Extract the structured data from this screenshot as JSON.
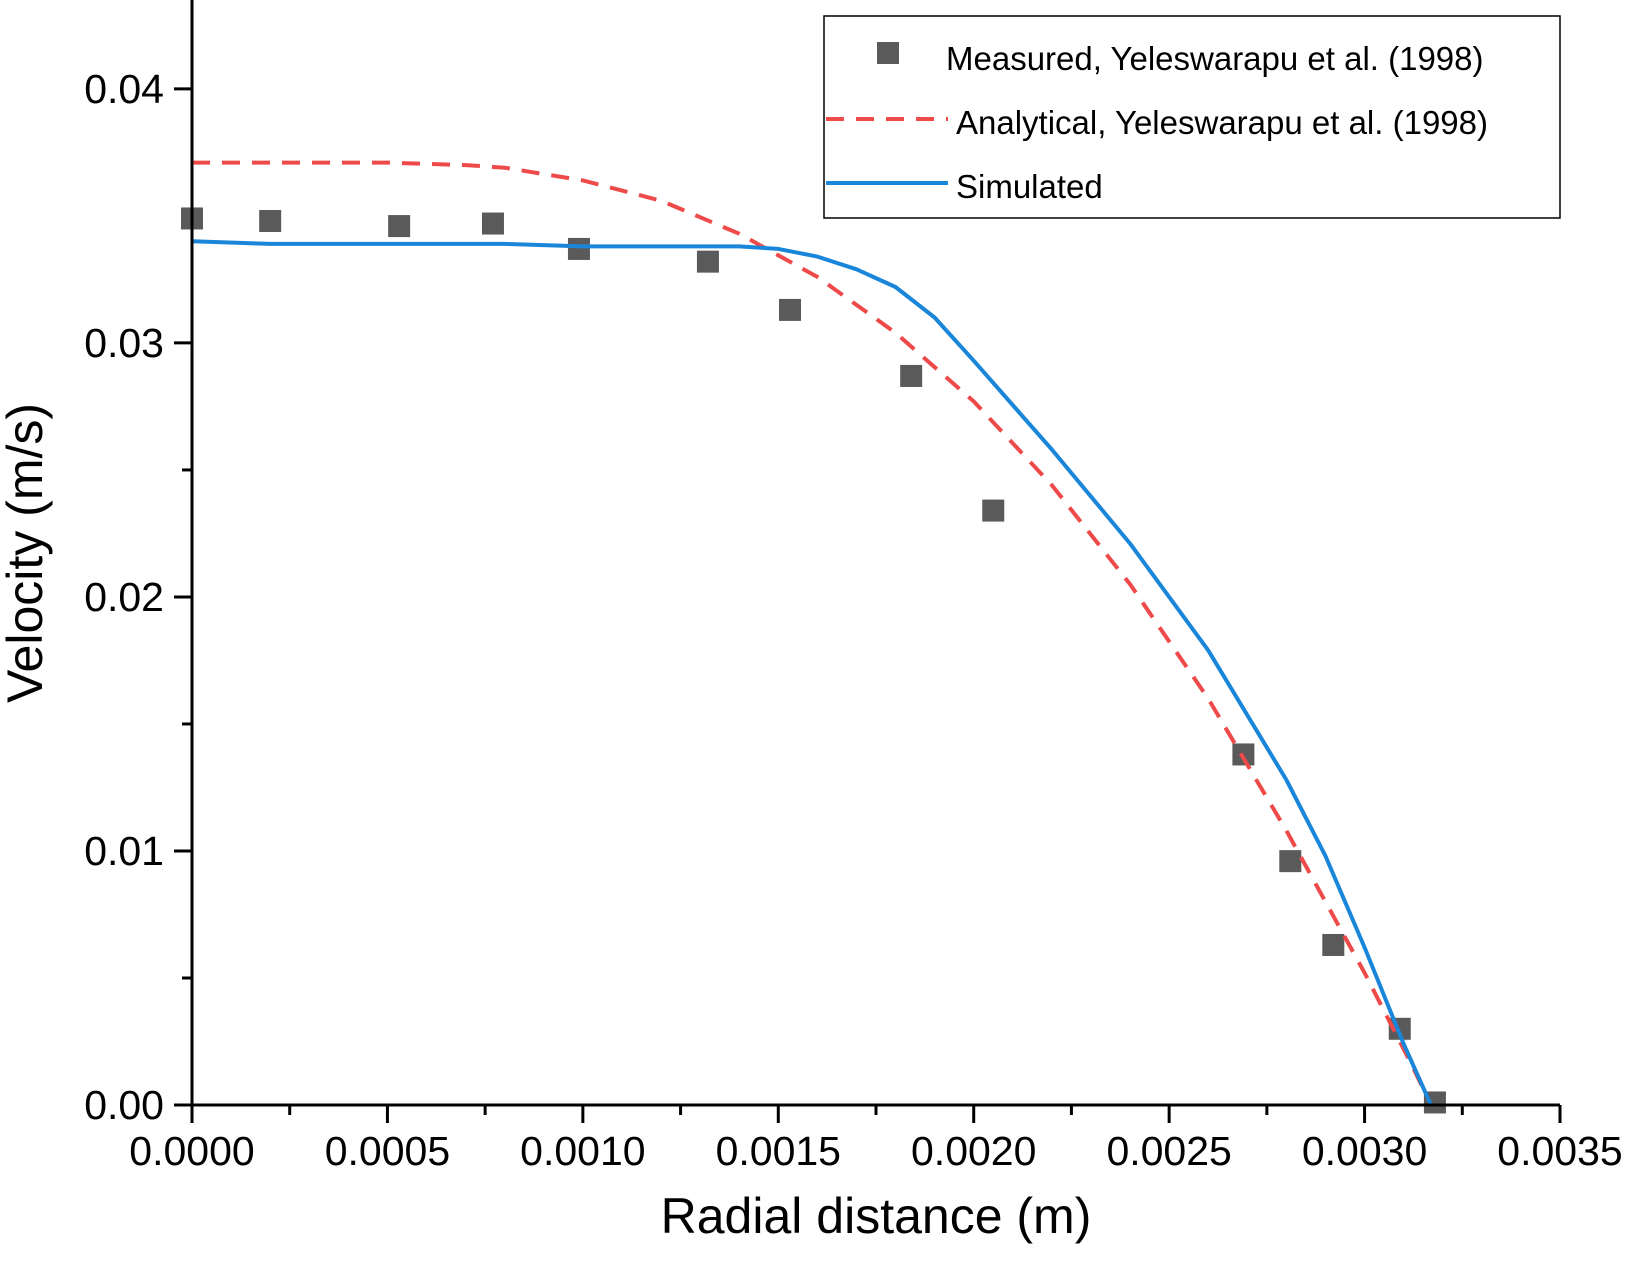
{
  "chart_data": {
    "type": "line",
    "xlabel": "Radial distance (m)",
    "ylabel": "Velocity (m/s)",
    "xlim": [
      0,
      0.0035
    ],
    "ylim": [
      0,
      0.0435
    ],
    "x_ticks": [
      0,
      0.0005,
      0.001,
      0.0015,
      0.002,
      0.0025,
      0.003,
      0.0035
    ],
    "x_tick_labels": [
      "0.0000",
      "0.0005",
      "0.0010",
      "0.0015",
      "0.0020",
      "0.0025",
      "0.0030",
      "0.0035"
    ],
    "y_ticks": [
      0,
      0.01,
      0.02,
      0.03,
      0.04
    ],
    "y_tick_labels": [
      "0.00",
      "0.01",
      "0.02",
      "0.03",
      "0.04"
    ],
    "legend_position": "top-right",
    "series": [
      {
        "name": "Measured, Yeleswarapu et al. (1998)",
        "style": "scatter-square",
        "color": "#5a5a5a",
        "points": [
          [
            0.0,
            0.0349
          ],
          [
            0.0002,
            0.0348
          ],
          [
            0.00053,
            0.0346
          ],
          [
            0.00077,
            0.0347
          ],
          [
            0.00099,
            0.0337
          ],
          [
            0.00132,
            0.0332
          ],
          [
            0.00153,
            0.0313
          ],
          [
            0.00184,
            0.0287
          ],
          [
            0.00205,
            0.0234
          ],
          [
            0.00269,
            0.0138
          ],
          [
            0.00281,
            0.0096
          ],
          [
            0.00292,
            0.0063
          ],
          [
            0.00309,
            0.003
          ],
          [
            0.00318,
            0.0001
          ]
        ]
      },
      {
        "name": "Analytical, Yeleswarapu et al. (1998)",
        "style": "dashed-line",
        "color": "#ef4a4a",
        "points": [
          [
            0.0,
            0.0371
          ],
          [
            0.0002,
            0.0371
          ],
          [
            0.0004,
            0.0371
          ],
          [
            0.0005,
            0.0371
          ],
          [
            0.0007,
            0.037
          ],
          [
            0.0008,
            0.0369
          ],
          [
            0.001,
            0.0364
          ],
          [
            0.0012,
            0.0356
          ],
          [
            0.0014,
            0.0343
          ],
          [
            0.0016,
            0.0326
          ],
          [
            0.0018,
            0.0304
          ],
          [
            0.002,
            0.0277
          ],
          [
            0.0022,
            0.0244
          ],
          [
            0.0024,
            0.0205
          ],
          [
            0.0026,
            0.016
          ],
          [
            0.0028,
            0.0108
          ],
          [
            0.003,
            0.0052
          ],
          [
            0.00312,
            0.0016
          ],
          [
            0.00317,
            0.0
          ]
        ]
      },
      {
        "name": "Simulated",
        "style": "solid-line",
        "color": "#1a86d9",
        "points": [
          [
            0.0,
            0.034
          ],
          [
            0.0002,
            0.0339
          ],
          [
            0.0005,
            0.0339
          ],
          [
            0.0008,
            0.0339
          ],
          [
            0.001,
            0.0338
          ],
          [
            0.0012,
            0.0338
          ],
          [
            0.0014,
            0.0338
          ],
          [
            0.0015,
            0.0337
          ],
          [
            0.0016,
            0.0334
          ],
          [
            0.0017,
            0.0329
          ],
          [
            0.0018,
            0.0322
          ],
          [
            0.0019,
            0.031
          ],
          [
            0.002,
            0.0293
          ],
          [
            0.0022,
            0.0258
          ],
          [
            0.0024,
            0.0221
          ],
          [
            0.0026,
            0.0179
          ],
          [
            0.0028,
            0.0128
          ],
          [
            0.0029,
            0.0098
          ],
          [
            0.003,
            0.0062
          ],
          [
            0.0031,
            0.0024
          ],
          [
            0.00317,
            0.0
          ]
        ]
      }
    ]
  }
}
